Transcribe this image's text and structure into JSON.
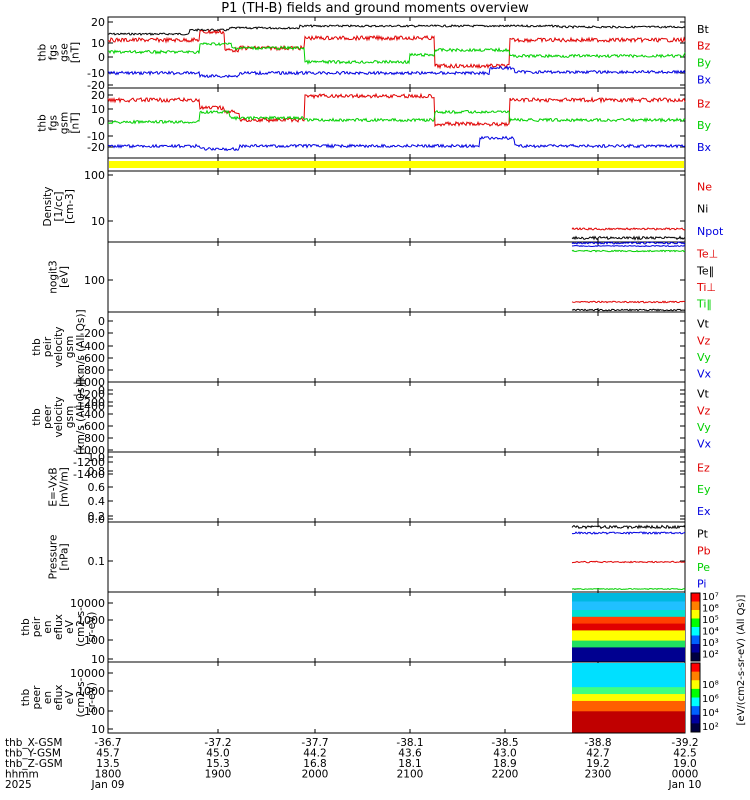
{
  "title": "P1 (TH-B) fields and ground moments overview",
  "colors": {
    "black": "#000000",
    "red": "#e00000",
    "green": "#00d000",
    "blue": "#0000e0",
    "yellow": "#ffff00"
  },
  "panels": [
    {
      "key": "fgs_gse",
      "ylabel": [
        "thb",
        "fgs",
        "gse",
        "[nT]"
      ],
      "ticks": [
        "20",
        "10",
        "0",
        "-10",
        "-20"
      ],
      "legend": [
        {
          "t": "Bt",
          "c": "black"
        },
        {
          "t": "Bz",
          "c": "red"
        },
        {
          "t": "By",
          "c": "green"
        },
        {
          "t": "Bx",
          "c": "blue"
        }
      ]
    },
    {
      "key": "fgs_gsm",
      "ylabel": [
        "thb",
        "fgs",
        "gsm",
        "[nT]"
      ],
      "ticks": [
        "20",
        "10",
        "0",
        "-10",
        "-20"
      ],
      "legend": [
        {
          "t": "Bz",
          "c": "red"
        },
        {
          "t": "By",
          "c": "green"
        },
        {
          "t": "Bx",
          "c": "blue"
        }
      ]
    },
    {
      "key": "bar",
      "ylabel": [],
      "ticks": [],
      "legend": []
    },
    {
      "key": "density",
      "ylabel": [
        "Density",
        "[1/cc]",
        "[cm-3]"
      ],
      "ticks": [
        "100",
        "10"
      ],
      "legend": [
        {
          "t": "Ne",
          "c": "red"
        },
        {
          "t": "Ni",
          "c": "black"
        },
        {
          "t": "Npot",
          "c": "blue"
        }
      ]
    },
    {
      "key": "temp",
      "ylabel": [
        "nogit3",
        "[eV]"
      ],
      "ticks": [
        "100"
      ],
      "legend": [
        {
          "t": "Te⊥",
          "c": "red"
        },
        {
          "t": "Te‖",
          "c": "black"
        },
        {
          "t": "Ti⊥",
          "c": "red"
        },
        {
          "t": "Ti‖",
          "c": "green"
        }
      ]
    },
    {
      "key": "peir_v",
      "ylabel": [
        "thb",
        "peir",
        "velocity",
        "gsm",
        "[km/s (All Qs)]"
      ],
      "ticks": [
        "0",
        "-200",
        "-400",
        "-600",
        "-800",
        "-1000",
        "-1200",
        "-1400"
      ],
      "legend": [
        {
          "t": "Vt",
          "c": "black"
        },
        {
          "t": "Vz",
          "c": "red"
        },
        {
          "t": "Vy",
          "c": "green"
        },
        {
          "t": "Vx",
          "c": "blue"
        }
      ]
    },
    {
      "key": "peer_v",
      "ylabel": [
        "thb",
        "peer",
        "velocity",
        "gsm",
        "[km/s (All Qs)]"
      ],
      "ticks": [
        "0",
        "-200",
        "-400",
        "-600",
        "-800",
        "-1000",
        "-1200",
        "-1400"
      ],
      "legend": [
        {
          "t": "Vt",
          "c": "black"
        },
        {
          "t": "Vz",
          "c": "red"
        },
        {
          "t": "Vy",
          "c": "green"
        },
        {
          "t": "Vx",
          "c": "blue"
        }
      ]
    },
    {
      "key": "efield",
      "ylabel": [
        "E=-VxB",
        "[mV/m]"
      ],
      "ticks": [
        "1.0",
        "0.8",
        "0.6",
        "0.4",
        "0.2",
        "0.0"
      ],
      "legend": [
        {
          "t": "Ez",
          "c": "red"
        },
        {
          "t": "Ey",
          "c": "green"
        },
        {
          "t": "Ex",
          "c": "blue"
        }
      ]
    },
    {
      "key": "pressure",
      "ylabel": [
        "Pressure",
        "[nPa]"
      ],
      "ticks": [
        "0.1"
      ],
      "legend": [
        {
          "t": "Pt",
          "c": "black"
        },
        {
          "t": "Pb",
          "c": "red"
        },
        {
          "t": "Pe",
          "c": "green"
        },
        {
          "t": "Pi",
          "c": "blue"
        }
      ]
    },
    {
      "key": "peir_spec",
      "ylabel": [
        "thb",
        "peir",
        "en",
        "eflux",
        "eV",
        "(cm2-s-",
        "sr-eV)"
      ],
      "ticks": [
        "10000",
        "1000",
        "100",
        "10"
      ],
      "legend": []
    },
    {
      "key": "peer_spec",
      "ylabel": [
        "thb",
        "peer",
        "en",
        "eflux",
        "eV",
        "(cm2-s-",
        "sr-eV)"
      ],
      "ticks": [
        "10000",
        "1000",
        "100",
        "10"
      ],
      "legend": []
    }
  ],
  "colorbar1": {
    "ticks": [
      "10⁷",
      "10⁶",
      "10⁵",
      "10⁴",
      "10³",
      "10²"
    ]
  },
  "colorbar2": {
    "ticks": [
      "10⁸",
      "10⁶",
      "10⁴",
      "10²"
    ]
  },
  "colorbar_label": "[eV/(cm2-s-sr-eV) (All Qs)]",
  "xaxis": {
    "rows": [
      {
        "label": "thb_X-GSM",
        "vals": [
          "-36.7",
          "-37.2",
          "-37.7",
          "-38.1",
          "-38.5",
          "-38.8",
          "-39.2"
        ]
      },
      {
        "label": "thb_Y-GSM",
        "vals": [
          "45.7",
          "45.0",
          "44.2",
          "43.6",
          "43.0",
          "42.7",
          "42.5"
        ]
      },
      {
        "label": "thb_Z-GSM",
        "vals": [
          "13.5",
          "15.3",
          "16.8",
          "18.1",
          "18.9",
          "19.2",
          "19.0"
        ]
      },
      {
        "label": "hhmm",
        "vals": [
          "1800",
          "1900",
          "2000",
          "2100",
          "2200",
          "2300",
          "0000"
        ]
      },
      {
        "label": "2025",
        "vals": [
          "Jan 09",
          "",
          "",
          "",
          "",
          "",
          "Jan 10"
        ]
      }
    ]
  },
  "chart_data": [
    {
      "type": "line",
      "title": "P1 (TH-B) fields and ground moments overview",
      "ylabel": "thb fgs gse [nT]",
      "ylim": [
        -20,
        25
      ],
      "x": [
        "1800",
        "1900",
        "2000",
        "2100",
        "2200",
        "2300",
        "0000"
      ],
      "series": [
        {
          "name": "Bt",
          "values": [
            17,
            18,
            19,
            18,
            19,
            18,
            18
          ]
        },
        {
          "name": "Bz",
          "values": [
            12,
            18,
            16,
            13,
            -5,
            14,
            14
          ]
        },
        {
          "name": "By",
          "values": [
            5,
            8,
            -2,
            3,
            8,
            3,
            2
          ]
        },
        {
          "name": "Bx",
          "values": [
            -10,
            -12,
            -12,
            -10,
            -10,
            -10,
            -11
          ]
        }
      ]
    },
    {
      "type": "line",
      "ylabel": "thb fgs gsm [nT]",
      "ylim": [
        -25,
        25
      ],
      "x": [
        "1800",
        "1900",
        "2000",
        "2100",
        "2200",
        "2300",
        "0000"
      ],
      "series": [
        {
          "name": "Bz",
          "values": [
            15,
            20,
            18,
            15,
            0,
            19,
            18
          ]
        },
        {
          "name": "By",
          "values": [
            5,
            8,
            2,
            5,
            8,
            5,
            5
          ]
        },
        {
          "name": "Bx",
          "values": [
            -18,
            -21,
            -20,
            -18,
            -20,
            -20,
            -20
          ]
        }
      ]
    },
    {
      "type": "line",
      "ylabel": "Density [1/cc] [cm-3]",
      "log": true,
      "x": [
        "2240",
        "2300",
        "0000"
      ],
      "series": [
        {
          "name": "Ne",
          "values": [
            8,
            8,
            8
          ]
        },
        {
          "name": "Ni",
          "values": [
            6,
            6,
            6
          ]
        },
        {
          "name": "Npot",
          "values": [
            5,
            5,
            5
          ]
        }
      ]
    },
    {
      "type": "line",
      "ylabel": "nogit3 [eV]",
      "log": true,
      "x": [
        "2240",
        "2300",
        "0000"
      ],
      "series": [
        {
          "name": "Te⊥",
          "values": [
            500,
            500,
            500
          ]
        },
        {
          "name": "Te‖",
          "values": [
            450,
            450,
            450
          ]
        },
        {
          "name": "Ti⊥",
          "values": [
            45,
            42,
            42
          ]
        },
        {
          "name": "Ti‖",
          "values": [
            400,
            400,
            400
          ]
        }
      ]
    },
    {
      "type": "line",
      "ylabel": "Pressure [nPa]",
      "log": true,
      "x": [
        "2240",
        "2300",
        "0000"
      ],
      "series": [
        {
          "name": "Pt",
          "values": [
            0.7,
            0.7,
            0.75
          ]
        },
        {
          "name": "Pb",
          "values": [
            0.11,
            0.11,
            0.11
          ]
        },
        {
          "name": "Pe",
          "values": [
            0.05,
            0.05,
            0.05
          ]
        },
        {
          "name": "Pi",
          "values": [
            0.55,
            0.55,
            0.55
          ]
        }
      ]
    }
  ]
}
